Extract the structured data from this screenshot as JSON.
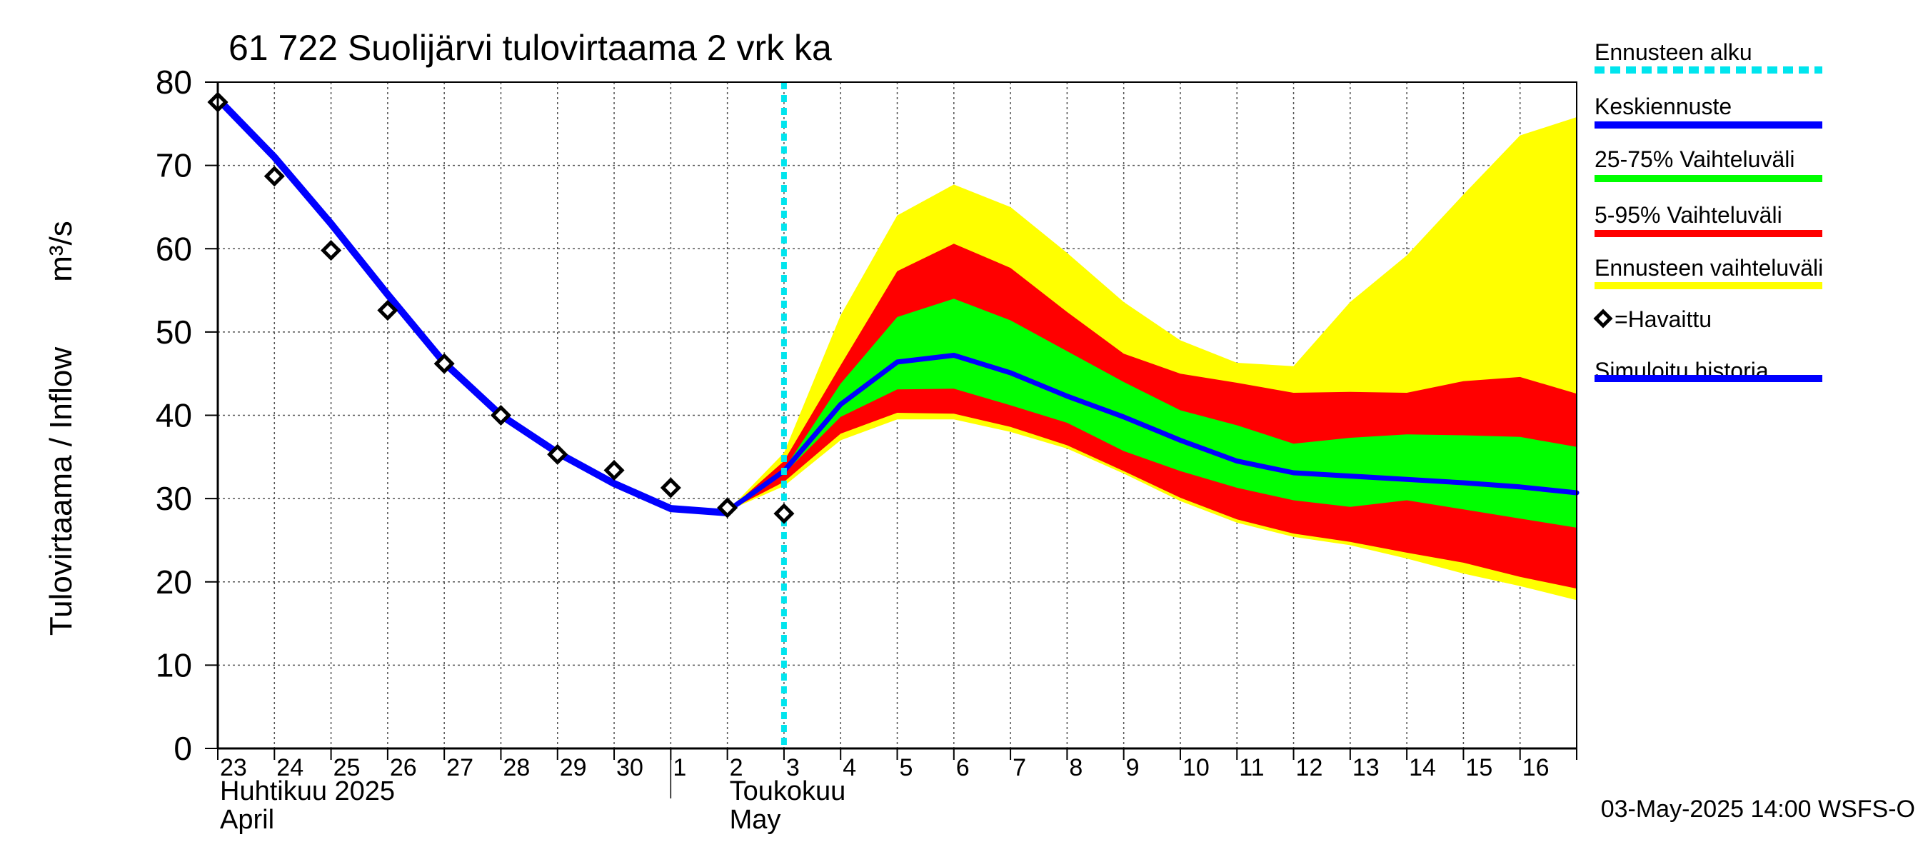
{
  "chart_data": {
    "type": "area",
    "title": "61 722 Suolijärvi tulovirtaama 2 vrk ka",
    "ylabel": "Tulovirtaama / Inflow",
    "yunit": "m³/s",
    "ylim": [
      0,
      80
    ],
    "yticks": [
      0,
      10,
      20,
      30,
      40,
      50,
      60,
      70,
      80
    ],
    "grid": true,
    "x": [
      "2025-04-23",
      "2025-04-24",
      "2025-04-25",
      "2025-04-26",
      "2025-04-27",
      "2025-04-28",
      "2025-04-29",
      "2025-04-30",
      "2025-05-01",
      "2025-05-02",
      "2025-05-03",
      "2025-05-04",
      "2025-05-05",
      "2025-05-06",
      "2025-05-07",
      "2025-05-08",
      "2025-05-09",
      "2025-05-10",
      "2025-05-11",
      "2025-05-12",
      "2025-05-13",
      "2025-05-14",
      "2025-05-15",
      "2025-05-16",
      "2025-05-17"
    ],
    "xtick_labels": [
      "23",
      "24",
      "25",
      "26",
      "27",
      "28",
      "29",
      "30",
      "1",
      "2",
      "3",
      "4",
      "5",
      "6",
      "7",
      "8",
      "9",
      "10",
      "11",
      "12",
      "13",
      "14",
      "15",
      "16"
    ],
    "month_labels": [
      {
        "line1": "Huhtikuu  2025",
        "line2": "April",
        "at": "2025-04-23"
      },
      {
        "line1": "Toukokuu",
        "line2": "May",
        "at": "2025-05-02"
      }
    ],
    "forecast_start": "2025-05-03",
    "series": [
      {
        "name": "Ennusteen vaihteluväli",
        "kind": "band",
        "color": "#ffff00",
        "x": [
          "2025-05-02",
          "2025-05-03",
          "2025-05-04",
          "2025-05-05",
          "2025-05-06",
          "2025-05-07",
          "2025-05-08",
          "2025-05-09",
          "2025-05-10",
          "2025-05-11",
          "2025-05-12",
          "2025-05-13",
          "2025-05-14",
          "2025-05-15",
          "2025-05-16",
          "2025-05-17"
        ],
        "upper": [
          28.5,
          35.5,
          52,
          64,
          67.7,
          65,
          59.5,
          53.6,
          49,
          46.3,
          45.9,
          53.6,
          59.2,
          66.5,
          73.6,
          75.8
        ],
        "lower": [
          28.5,
          31.5,
          37,
          39.5,
          39.5,
          38,
          36,
          33,
          29.7,
          27.1,
          25.4,
          24.4,
          22.8,
          21,
          19.5,
          17.8
        ]
      },
      {
        "name": "5-95% Vaihteluväli",
        "kind": "band",
        "color": "#ff0000",
        "x": [
          "2025-05-02",
          "2025-05-03",
          "2025-05-04",
          "2025-05-05",
          "2025-05-06",
          "2025-05-07",
          "2025-05-08",
          "2025-05-09",
          "2025-05-10",
          "2025-05-11",
          "2025-05-12",
          "2025-05-13",
          "2025-05-14",
          "2025-05-15",
          "2025-05-16",
          "2025-05-17"
        ],
        "upper": [
          28.5,
          34.5,
          46,
          57.3,
          60.6,
          57.7,
          52.4,
          47.4,
          45,
          43.9,
          42.7,
          42.8,
          42.7,
          44.1,
          44.6,
          42.6
        ],
        "lower": [
          28.5,
          32,
          37.8,
          40.3,
          40.2,
          38.6,
          36.4,
          33.3,
          30.1,
          27.5,
          25.8,
          24.8,
          23.5,
          22.3,
          20.6,
          19.2
        ]
      },
      {
        "name": "25-75% Vaihteluväli",
        "kind": "band",
        "color": "#00ff00",
        "x": [
          "2025-05-02",
          "2025-05-03",
          "2025-05-04",
          "2025-05-05",
          "2025-05-06",
          "2025-05-07",
          "2025-05-08",
          "2025-05-09",
          "2025-05-10",
          "2025-05-11",
          "2025-05-12",
          "2025-05-13",
          "2025-05-14",
          "2025-05-15",
          "2025-05-16",
          "2025-05-17"
        ],
        "upper": [
          28.5,
          33.5,
          43.8,
          51.8,
          54,
          51.4,
          47.7,
          44,
          40.6,
          38.8,
          36.6,
          37.3,
          37.7,
          37.6,
          37.4,
          36.2
        ],
        "lower": [
          28.5,
          33,
          39.8,
          43.1,
          43.2,
          41.2,
          39.1,
          35.7,
          33.3,
          31.3,
          29.8,
          29,
          29.8,
          28.7,
          27.6,
          26.5
        ]
      },
      {
        "name": "Keskiennuste",
        "kind": "line",
        "color": "#0000ff",
        "width": 7,
        "x": [
          "2025-05-02",
          "2025-05-03",
          "2025-05-04",
          "2025-05-05",
          "2025-05-06",
          "2025-05-07",
          "2025-05-08",
          "2025-05-09",
          "2025-05-10",
          "2025-05-11",
          "2025-05-12",
          "2025-05-13",
          "2025-05-14",
          "2025-05-15",
          "2025-05-16",
          "2025-05-17"
        ],
        "y": [
          28.5,
          33.3,
          41.3,
          46.4,
          47.2,
          45.1,
          42.3,
          39.8,
          37,
          34.5,
          33.1,
          32.7,
          32.3,
          31.9,
          31.4,
          30.7
        ]
      },
      {
        "name": "Simuloitu historia",
        "kind": "line",
        "color": "#0000ff",
        "width": 10,
        "x": [
          "2025-04-23",
          "2025-04-24",
          "2025-04-25",
          "2025-04-26",
          "2025-04-27",
          "2025-04-28",
          "2025-04-29",
          "2025-04-30",
          "2025-05-01",
          "2025-05-02"
        ],
        "y": [
          78,
          71,
          63,
          54.5,
          46.3,
          40,
          35.5,
          31.8,
          28.8,
          28.3
        ]
      },
      {
        "name": "=Havaittu",
        "kind": "marker",
        "x": [
          "2025-04-23",
          "2025-04-24",
          "2025-04-25",
          "2025-04-26",
          "2025-04-27",
          "2025-04-28",
          "2025-04-29",
          "2025-04-30",
          "2025-05-01",
          "2025-05-02",
          "2025-05-03"
        ],
        "y": [
          77.6,
          68.7,
          59.8,
          52.6,
          46.2,
          40,
          35.3,
          33.4,
          31.3,
          28.9,
          28.2
        ]
      }
    ],
    "legend": {
      "placement": "right",
      "entries": [
        {
          "label": "Ennusteen alku",
          "color": "#00e5ee",
          "style": "dashed"
        },
        {
          "label": "Keskiennuste",
          "color": "#0000ff",
          "style": "line"
        },
        {
          "label": "25-75% Vaihteluväli",
          "color": "#00ff00",
          "style": "line"
        },
        {
          "label": "5-95% Vaihteluväli",
          "color": "#ff0000",
          "style": "line"
        },
        {
          "label": "Ennusteen vaihteluväli",
          "color": "#ffff00",
          "style": "line"
        },
        {
          "label": "=Havaittu",
          "color": "#000000",
          "style": "marker"
        },
        {
          "label": "Simuloitu historia",
          "color": "#0000ff",
          "style": "line"
        }
      ]
    },
    "footer": "03-May-2025 14:00 WSFS-O"
  }
}
